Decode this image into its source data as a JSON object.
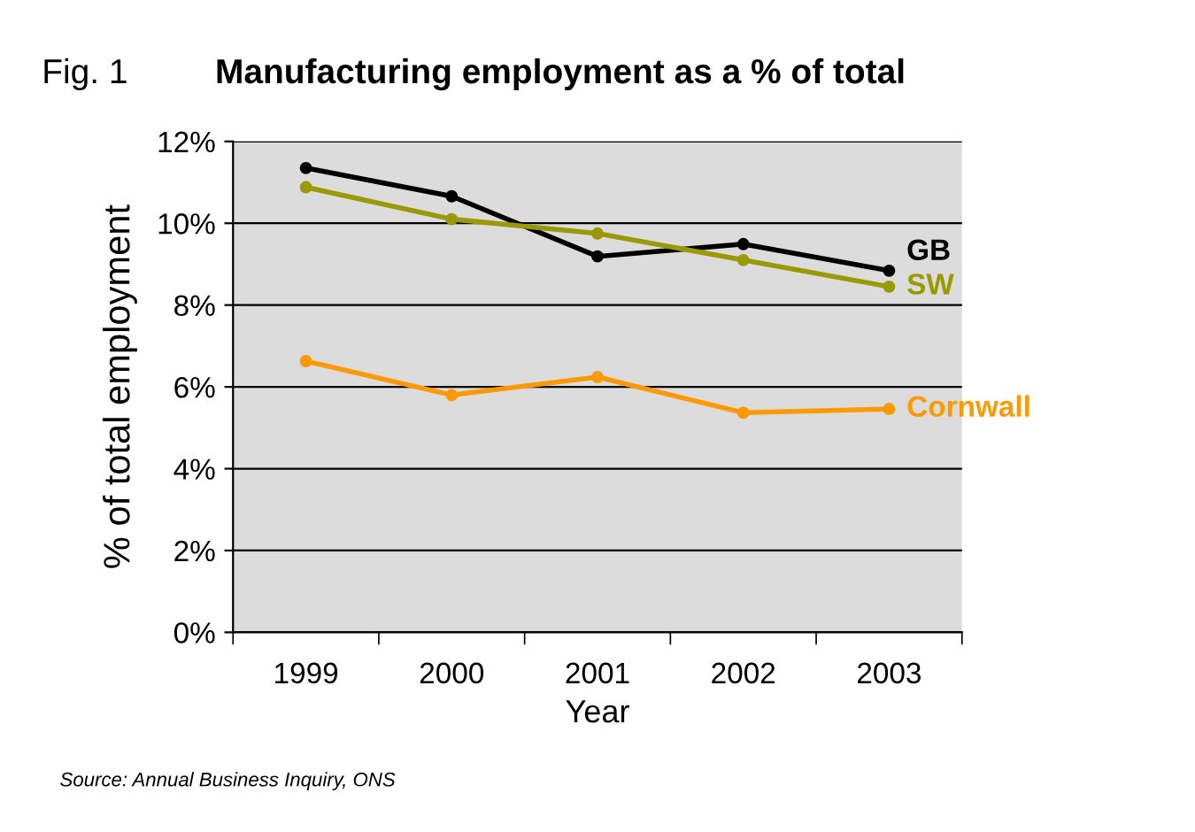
{
  "chart_data": {
    "type": "line",
    "title": "Manufacturing employment as a % of total",
    "xlabel": "Year",
    "ylabel": "% of total employment",
    "annotations": [
      "Fig. 1",
      "Source: Annual Business Inquiry, ONS"
    ],
    "categories": [
      "1999",
      "2000",
      "2001",
      "2002",
      "2003"
    ],
    "series": [
      {
        "name": "GB",
        "color": "#000000",
        "values": [
          11.35,
          10.66,
          9.19,
          9.49,
          8.84
        ]
      },
      {
        "name": "SW",
        "color": "#999900",
        "values": [
          10.88,
          10.1,
          9.75,
          9.1,
          8.45
        ]
      },
      {
        "name": "Cornwall",
        "color": "#ff9900",
        "values": [
          6.63,
          5.8,
          6.24,
          5.37,
          5.46
        ]
      }
    ],
    "ylim": [
      0,
      12
    ],
    "yticks": [
      {
        "value": 0,
        "label": "0%"
      },
      {
        "value": 2,
        "label": "2%"
      },
      {
        "value": 4,
        "label": "4%"
      },
      {
        "value": 6,
        "label": "6%"
      },
      {
        "value": 8,
        "label": "8%"
      },
      {
        "value": 10,
        "label": "10%"
      },
      {
        "value": 12,
        "label": "12%"
      }
    ],
    "grid": "y",
    "legend": false,
    "marker": "circle",
    "line_style": "solid"
  }
}
